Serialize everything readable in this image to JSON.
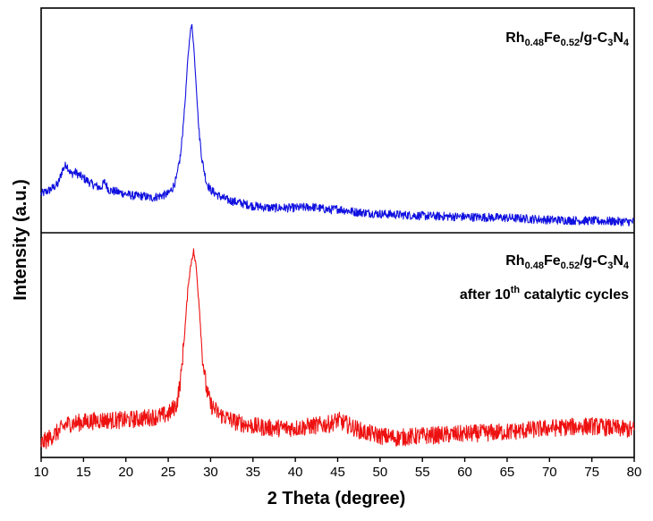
{
  "chart_data": {
    "type": "line",
    "xlabel": "2 Theta (degree)",
    "ylabel": "Intensity (a.u.)",
    "xlim": [
      10,
      80
    ],
    "x_ticks": [
      10,
      15,
      20,
      25,
      30,
      35,
      40,
      45,
      50,
      55,
      60,
      65,
      70,
      75,
      80
    ],
    "panels": [
      {
        "label": {
          "base1": "Rh",
          "sub1": "0.48",
          "base2": "Fe",
          "sub2": "0.52",
          "base3": "/g-C",
          "sub3": "3",
          "base4": "N",
          "sub4": "4"
        },
        "note": null,
        "color": "#1010e0",
        "x": [
          10,
          11,
          12,
          12.5,
          13,
          13.5,
          14,
          15,
          16,
          17,
          17.5,
          18,
          19,
          20,
          21,
          22,
          23,
          24,
          25,
          25.5,
          26,
          26.5,
          27,
          27.3,
          27.6,
          27.8,
          28,
          28.3,
          28.6,
          29,
          29.5,
          30,
          31,
          32,
          33,
          35,
          37,
          40,
          42,
          44,
          45,
          47,
          50,
          55,
          60,
          65,
          70,
          75,
          80
        ],
        "y": [
          0.15,
          0.17,
          0.2,
          0.27,
          0.3,
          0.25,
          0.26,
          0.23,
          0.2,
          0.18,
          0.21,
          0.17,
          0.16,
          0.15,
          0.14,
          0.14,
          0.13,
          0.14,
          0.15,
          0.18,
          0.23,
          0.36,
          0.62,
          0.82,
          0.97,
          1.0,
          0.9,
          0.7,
          0.48,
          0.32,
          0.21,
          0.17,
          0.14,
          0.12,
          0.11,
          0.09,
          0.08,
          0.08,
          0.085,
          0.07,
          0.075,
          0.06,
          0.05,
          0.04,
          0.035,
          0.03,
          0.02,
          0.015,
          0.01
        ]
      },
      {
        "label": {
          "base1": "Rh",
          "sub1": "0.48",
          "base2": "Fe",
          "sub2": "0.52",
          "base3": "/g-C",
          "sub3": "3",
          "base4": "N",
          "sub4": "4"
        },
        "note": {
          "text1": "after 10",
          "sup": "th",
          "text2": " catalytic cycles"
        },
        "color": "#ee1111",
        "x": [
          10,
          11,
          12,
          13,
          15,
          17,
          20,
          22,
          24,
          25,
          26,
          26.5,
          27,
          27.4,
          27.8,
          28,
          28.3,
          28.7,
          29,
          29.5,
          30,
          31,
          32,
          33,
          35,
          37,
          40,
          42,
          44,
          45,
          46,
          47,
          48,
          50,
          52,
          55,
          60,
          65,
          70,
          75,
          80
        ],
        "y": [
          0.02,
          0.05,
          0.08,
          0.12,
          0.13,
          0.14,
          0.14,
          0.15,
          0.16,
          0.17,
          0.22,
          0.36,
          0.62,
          0.85,
          0.97,
          1.0,
          0.92,
          0.7,
          0.48,
          0.3,
          0.22,
          0.17,
          0.15,
          0.13,
          0.11,
          0.1,
          0.1,
          0.11,
          0.12,
          0.14,
          0.12,
          0.1,
          0.08,
          0.06,
          0.05,
          0.06,
          0.07,
          0.08,
          0.1,
          0.11,
          0.09
        ]
      }
    ]
  }
}
